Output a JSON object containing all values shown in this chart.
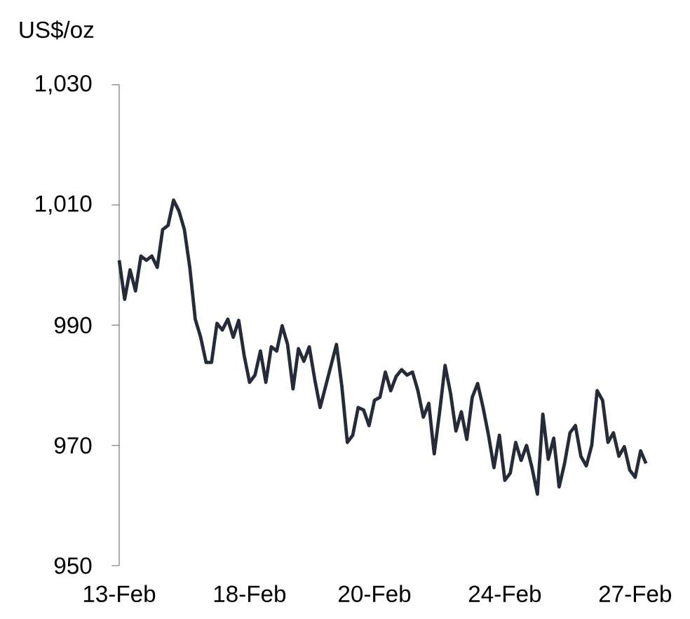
{
  "chart_data": {
    "type": "line",
    "ylabel": "US$/oz",
    "categories": [
      "13-Feb",
      null,
      null,
      null,
      null,
      null,
      null,
      null,
      null,
      null,
      null,
      null,
      null,
      null,
      null,
      null,
      null,
      null,
      null,
      null,
      null,
      null,
      null,
      null,
      "18-Feb",
      null,
      null,
      null,
      null,
      null,
      null,
      null,
      null,
      null,
      null,
      null,
      null,
      null,
      null,
      null,
      null,
      null,
      null,
      null,
      null,
      null,
      null,
      "20-Feb",
      null,
      null,
      null,
      null,
      null,
      null,
      null,
      null,
      null,
      null,
      null,
      null,
      null,
      null,
      null,
      null,
      null,
      null,
      null,
      null,
      null,
      null,
      null,
      "24-Feb",
      null,
      null,
      null,
      null,
      null,
      null,
      null,
      null,
      null,
      null,
      null,
      null,
      null,
      null,
      null,
      null,
      null,
      null,
      null,
      null,
      null,
      null,
      null,
      "27-Feb",
      null,
      null
    ],
    "series": [
      {
        "color": "#252b38",
        "values": [
          1000.8,
          994.3,
          999.2,
          995.7,
          1001.5,
          1000.8,
          1001.5,
          999.6,
          1005.9,
          1006.6,
          1010.8,
          1009.0,
          1005.9,
          999.6,
          991.0,
          988.0,
          983.8,
          983.8,
          990.3,
          989.2,
          991.0,
          988.0,
          990.8,
          985.0,
          980.5,
          981.7,
          985.7,
          980.5,
          986.4,
          985.7,
          989.9,
          986.8,
          979.4,
          986.1,
          984.0,
          986.4,
          981.0,
          976.3,
          979.8,
          983.3,
          986.8,
          979.8,
          970.5,
          971.7,
          976.3,
          975.9,
          973.3,
          977.5,
          978.0,
          982.2,
          979.1,
          981.5,
          982.6,
          981.7,
          982.2,
          979.1,
          974.7,
          977.0,
          968.6,
          975.6,
          983.3,
          978.7,
          972.4,
          975.6,
          971.0,
          978.0,
          980.3,
          976.3,
          971.7,
          966.3,
          971.7,
          964.2,
          965.4,
          970.5,
          967.5,
          970.0,
          966.3,
          961.9,
          975.2,
          967.7,
          971.2,
          963.1,
          967.0,
          972.1,
          973.3,
          968.2,
          966.6,
          970.0,
          979.1,
          977.5,
          970.5,
          972.1,
          968.2,
          969.8,
          965.9,
          964.7,
          969.1,
          967.0
        ]
      }
    ],
    "ylim": [
      950,
      1030
    ],
    "yticks": [
      950,
      970,
      990,
      {
        "value": 1010,
        "label": "1,010"
      },
      {
        "value": 1030,
        "label": "1,030"
      }
    ],
    "grid": false,
    "marker": "none",
    "line_style": "solid"
  }
}
